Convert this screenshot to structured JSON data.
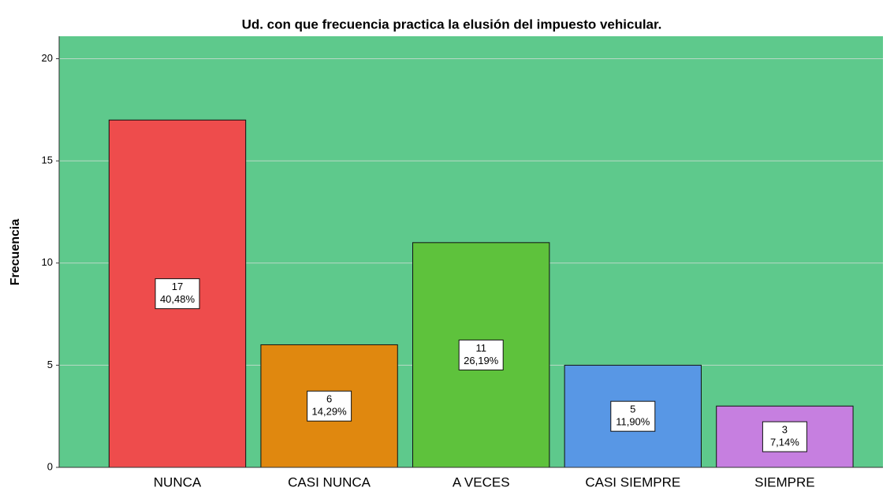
{
  "chart_data": {
    "type": "bar",
    "title": "Ud. con que frecuencia practica la elusión del impuesto vehicular.",
    "y_label": "Frecuencia",
    "categories": [
      "NUNCA",
      "CASI NUNCA",
      "A VECES",
      "CASI SIEMPRE",
      "SIEMPRE"
    ],
    "values": [
      17,
      6,
      11,
      5,
      3
    ],
    "percent_labels": [
      "40,48%",
      "14,29%",
      "26,19%",
      "11,90%",
      "7,14%"
    ],
    "colors": [
      "#ee4c4c",
      "#e0880f",
      "#5ec23c",
      "#5897e5",
      "#c67fe0"
    ],
    "ylim": [
      0,
      21.1
    ],
    "yticks": [
      0,
      5,
      10,
      15,
      20
    ],
    "grid": true,
    "background": "#5ec98c"
  }
}
